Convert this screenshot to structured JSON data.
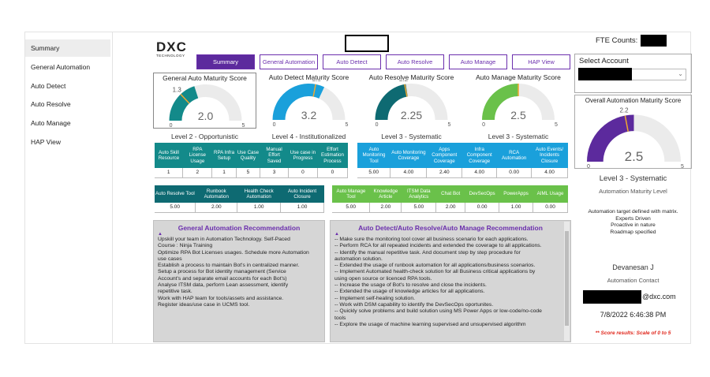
{
  "sidebar": {
    "items": [
      {
        "label": "Summary",
        "active": true
      },
      {
        "label": "General Automation",
        "active": false
      },
      {
        "label": "Auto Detect",
        "active": false
      },
      {
        "label": "Auto Resolve",
        "active": false
      },
      {
        "label": "Auto Manage",
        "active": false
      },
      {
        "label": "HAP View",
        "active": false
      }
    ]
  },
  "logo": {
    "brand": "DXC",
    "sub": "TECHNOLOGY"
  },
  "tabs": [
    {
      "label": "Summary",
      "active": true
    },
    {
      "label": "General Automation",
      "active": false
    },
    {
      "label": "Auto Detect",
      "active": false
    },
    {
      "label": "Auto Resolve",
      "active": false
    },
    {
      "label": "Auto Manage",
      "active": false
    },
    {
      "label": "HAP View",
      "active": false
    }
  ],
  "gauges": [
    {
      "title": "General Auto Maturity Score",
      "value": "2.0",
      "target": "1.3",
      "min": "0",
      "max": "5",
      "level": "Level 2 - Opportunistic",
      "color": "#138a8a",
      "fill_fraction": 0.4,
      "target_fraction": 0.26
    },
    {
      "title": "Auto Detect Maturity Score",
      "value": "3.2",
      "target": "2.8",
      "min": "0",
      "max": "5",
      "level": "Level 4 - Institutionalized",
      "color": "#1aa0db",
      "fill_fraction": 0.64,
      "target_fraction": 0.56
    },
    {
      "title": "Auto Resolve Maturity Score",
      "value": "2.25",
      "target": "2.2",
      "min": "0",
      "max": "5",
      "level": "Level 3 - Systematic",
      "color": "#0e6a72",
      "fill_fraction": 0.45,
      "target_fraction": 0.44
    },
    {
      "title": "Auto Manage Maturity Score",
      "value": "2.5",
      "target": "2.5",
      "min": "0",
      "max": "5",
      "level": "Level 3 - Systematic",
      "color": "#6ac14a",
      "fill_fraction": 0.5,
      "target_fraction": 0.5
    }
  ],
  "table_general": {
    "headers": [
      "Auto Skill Resource",
      "RPA License Usage",
      "RPA Infra Setup",
      "Use Case Quality",
      "Manual Effort Saved",
      "Use case in Progress",
      "Effort Estimation Process"
    ],
    "values": [
      "1",
      "2",
      "1",
      "5",
      "3",
      "0",
      "0"
    ]
  },
  "table_detect": {
    "headers": [
      "Auto Monitoring Tool",
      "Auto Monitoring Coverage",
      "Apps Component Coverage",
      "Infra Component Coverage",
      "RCA Automation",
      "Auto Events/ Incidents Closure"
    ],
    "values": [
      "5.00",
      "4.00",
      "2.40",
      "4.00",
      "0.00",
      "4.00"
    ]
  },
  "table_resolve": {
    "headers": [
      "Auto Resolve Tool",
      "Runbook Automation",
      "Health Check Automation",
      "Auto Incident Closure"
    ],
    "values": [
      "5.00",
      "2.00",
      "1.00",
      "1.00"
    ]
  },
  "table_manage": {
    "headers": [
      "Auto Manage Tool",
      "Knowledge Article",
      "ITSM Data Analytics",
      "Chat Bot",
      "DevSecOps",
      "PowerApps",
      "AIML Usage"
    ],
    "values": [
      "5.00",
      "2.00",
      "5.00",
      "2.00",
      "0.00",
      "1.00",
      "0.00"
    ]
  },
  "rec_general": {
    "title": "General Automation Recommendation",
    "text": "Upskill your team in Automation Technology. Self-Paced\nCourse : Ninja Training\nOptimize RPA Bot Licenses usages. Schedule more Automation\nuse cases\nEstablish a process to maintain Bot's in centralized manner.\nSetup a process for Bot identity management (Service\nAccount's and separate email accounts for each Bot's)\nAnalyse ITSM data, perform Lean assessment, identify\nrepetitive task.\nWork with HAP team for tools/assets and assistance.\nRegister ideas/use case in UCMS tool."
  },
  "rec_detect": {
    "title": "Auto Detect/Auto Resolve/Auto Manage Recommendation",
    "text": "-- Make sure the monitoring tool cover all business scenario for each applications.\n-- Perform RCA for all repeated incidents and extended the coverage to all applications.\n-- Identify the manual repetitive task. And document step by step procedure for\nautomation solution.\n-- Extended the usage of runbook automation for all applications/business scenarios.\n-- Implement Automated health-check solution for all Business critical applications by\nusing open source or licenced RPA tools.\n-- Increase the usage of Bot's to resolve and close the incidents.\n-- Extended the usage of knowledge articles for all applications.\n-- Implement self-healing solution.\n-- Work with DSM capability to identify the DevSecOps oportunites.\n-- Quickly solve problems and build solution using MS Power Apps or low-code/no-code\ntools\n-- Explore the usage of machine learning supervised and unsupervised algorithm"
  },
  "right": {
    "fte_label": "FTE Counts:",
    "select_label": "Select Account",
    "overall_title": "Overall Automation Maturity Score",
    "overall_value": "2.5",
    "overall_target": "2.2",
    "overall_min": "0",
    "overall_max": "5",
    "overall_fill_fraction": 0.5,
    "overall_target_fraction": 0.44,
    "overall_color": "#5c2a9d",
    "level": "Level 3 - Systematic",
    "level_sub": "Automation Maturity Level",
    "desc": "Automation target defined with matrix.\nExperts Driven\nProactive in nature\nRoadmap specified",
    "contact_name": "Devanesan J",
    "contact_role": "Automation Contact",
    "email_suffix": "@dxc.com",
    "datetime": "7/8/2022 6:46:38 PM",
    "note": "** Score results: Scale of 0 to 5"
  }
}
